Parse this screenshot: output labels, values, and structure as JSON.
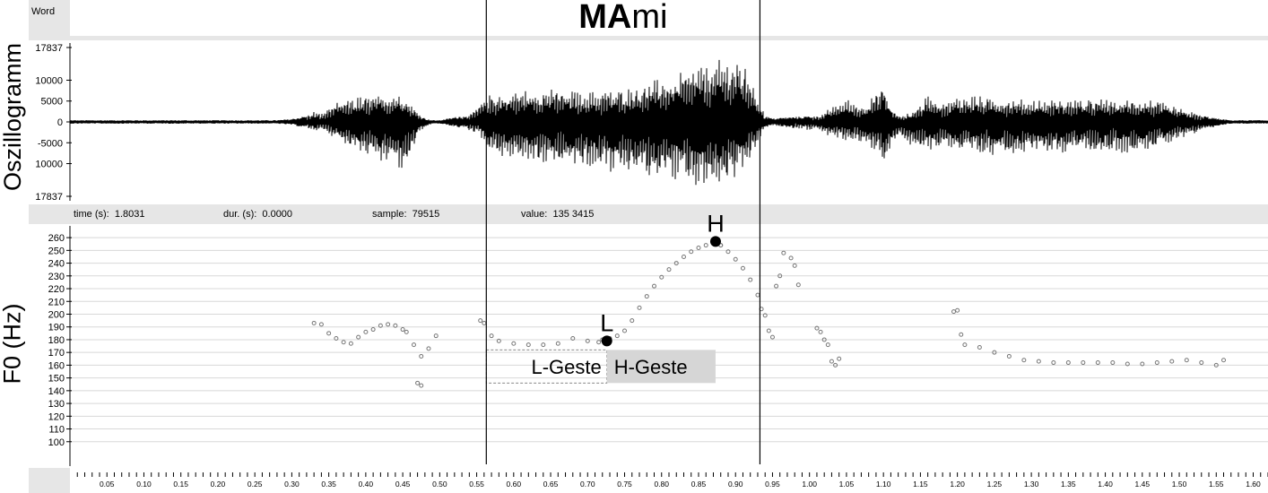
{
  "word_tier": {
    "label": "Word",
    "word_bold": "MA",
    "word_rest": "mi",
    "boundaries": [
      0.563,
      0.933
    ]
  },
  "info_bar": {
    "time": "time (s):  1.8031",
    "dur": "dur. (s):  0.0000",
    "sample": "sample:  79515",
    "value": "value:  135 3415"
  },
  "chart_data": [
    {
      "type": "line",
      "ylabel": "Oszillogramm",
      "xlim": [
        0,
        1.62
      ],
      "ylim": [
        -17837,
        17837
      ],
      "ytick_labels": [
        {
          "v": 17837,
          "t": "17837"
        },
        {
          "v": 10000,
          "t": "10000"
        },
        {
          "v": 5000,
          "t": "5000"
        },
        {
          "v": 0,
          "t": "0"
        },
        {
          "v": -5000,
          "t": "-5000"
        },
        {
          "v": -10000,
          "t": "10000"
        },
        {
          "v": -17837,
          "t": "17837"
        }
      ],
      "envelope": {
        "x": [
          0.0,
          0.28,
          0.3,
          0.32,
          0.33,
          0.34,
          0.35,
          0.36,
          0.37,
          0.39,
          0.41,
          0.43,
          0.45,
          0.46,
          0.47,
          0.48,
          0.49,
          0.5,
          0.53,
          0.545,
          0.555,
          0.56,
          0.565,
          0.58,
          0.6,
          0.62,
          0.64,
          0.66,
          0.68,
          0.7,
          0.72,
          0.74,
          0.76,
          0.78,
          0.8,
          0.82,
          0.84,
          0.86,
          0.88,
          0.9,
          0.92,
          0.93,
          0.94,
          0.95,
          0.96,
          0.98,
          1.0,
          1.02,
          1.025,
          1.035,
          1.05,
          1.07,
          1.085,
          1.095,
          1.1,
          1.105,
          1.115,
          1.125,
          1.14,
          1.16,
          1.18,
          1.185,
          1.2,
          1.22,
          1.25,
          1.28,
          1.3,
          1.33,
          1.36,
          1.4,
          1.43,
          1.46,
          1.48,
          1.5,
          1.52,
          1.54,
          1.555,
          1.57,
          1.62
        ],
        "pos": [
          400,
          400,
          700,
          1500,
          2500,
          2000,
          3500,
          4500,
          5500,
          6000,
          6500,
          7000,
          7500,
          5000,
          2500,
          800,
          400,
          400,
          1500,
          2500,
          4500,
          5500,
          6500,
          7000,
          7500,
          7800,
          8000,
          8000,
          7500,
          7200,
          7500,
          7800,
          8500,
          9500,
          10500,
          11500,
          13000,
          14000,
          15000,
          15500,
          12000,
          6000,
          1500,
          800,
          1000,
          1200,
          1400,
          2000,
          3000,
          4500,
          5500,
          4000,
          6000,
          8500,
          11000,
          6000,
          2500,
          1500,
          2500,
          6500,
          5500,
          4500,
          6500,
          6500,
          6000,
          5500,
          5500,
          5500,
          5500,
          5500,
          5500,
          5500,
          4500,
          3500,
          2200,
          1200,
          700,
          400,
          400
        ],
        "neg": [
          400,
          400,
          700,
          1500,
          2200,
          2000,
          3000,
          4000,
          5500,
          7500,
          9000,
          10500,
          11500,
          9000,
          4000,
          1200,
          400,
          400,
          1500,
          2500,
          3500,
          5000,
          7000,
          8500,
          9000,
          9500,
          10000,
          10500,
          11000,
          11500,
          12000,
          12500,
          13000,
          13500,
          14000,
          14500,
          15500,
          16500,
          15500,
          14000,
          10000,
          5000,
          1500,
          800,
          1000,
          1500,
          2000,
          2500,
          3500,
          4000,
          4500,
          5500,
          6500,
          8000,
          11000,
          8500,
          4500,
          3500,
          6500,
          7000,
          6000,
          5500,
          7500,
          8000,
          8000,
          7500,
          7500,
          7500,
          7500,
          7500,
          7500,
          6500,
          5500,
          4500,
          3000,
          1600,
          800,
          400,
          400
        ]
      }
    },
    {
      "type": "scatter",
      "ylabel": "F0 (Hz)",
      "xlim": [
        0,
        1.62
      ],
      "ylim": [
        90,
        265
      ],
      "yticks": [
        100,
        110,
        120,
        130,
        140,
        150,
        160,
        170,
        180,
        190,
        200,
        210,
        220,
        230,
        240,
        250,
        260
      ],
      "xticks": [
        "0.05",
        "0.10",
        "0.15",
        "0.20",
        "0.25",
        "0.30",
        "0.35",
        "0.40",
        "0.45",
        "0.50",
        "0.55",
        "0.60",
        "0.65",
        "0.70",
        "0.75",
        "0.80",
        "0.85",
        "0.90",
        "0.95",
        "1.00",
        "1.05",
        "1.10",
        "1.15",
        "1.20",
        "1.25",
        "1.30",
        "1.35",
        "1.40",
        "1.45",
        "1.50",
        "1.55",
        "1.60"
      ],
      "contours": [
        {
          "x": [
            0.33,
            0.34,
            0.35,
            0.36,
            0.37,
            0.38,
            0.39,
            0.4,
            0.41,
            0.42,
            0.43,
            0.44,
            0.45,
            0.455
          ],
          "y": [
            193,
            192,
            185,
            181,
            178,
            177,
            182,
            186,
            188,
            191,
            192,
            191,
            188,
            186
          ]
        },
        {
          "x": [
            0.465,
            0.475,
            0.485,
            0.495
          ],
          "y": [
            176,
            167,
            173,
            183
          ]
        },
        {
          "x": [
            0.47,
            0.475
          ],
          "y": [
            146,
            144
          ]
        },
        {
          "x": [
            0.555,
            0.56,
            0.57,
            0.58,
            0.6,
            0.62,
            0.64,
            0.66,
            0.68,
            0.7,
            0.715,
            0.72
          ],
          "y": [
            195,
            193,
            183,
            179,
            177,
            176,
            176,
            177,
            181,
            179,
            178,
            180
          ]
        },
        {
          "x": [
            0.73,
            0.74,
            0.75,
            0.76,
            0.77,
            0.78,
            0.79,
            0.8,
            0.81,
            0.82,
            0.83,
            0.84,
            0.85,
            0.86,
            0.87,
            0.88
          ],
          "y": [
            181,
            183,
            187,
            195,
            205,
            214,
            222,
            229,
            235,
            240,
            245,
            249,
            252,
            254,
            256,
            254
          ]
        },
        {
          "x": [
            0.88,
            0.89,
            0.9,
            0.91,
            0.92,
            0.93,
            0.935
          ],
          "y": [
            254,
            249,
            243,
            236,
            227,
            215,
            204
          ]
        },
        {
          "x": [
            0.94,
            0.945,
            0.95
          ],
          "y": [
            199,
            187,
            182
          ]
        },
        {
          "x": [
            0.955,
            0.965,
            0.975,
            0.985,
            0.96,
            0.98
          ],
          "y": [
            222,
            248,
            244,
            223,
            230,
            238
          ]
        },
        {
          "x": [
            1.01,
            1.015,
            1.02,
            1.025,
            1.03,
            1.035,
            1.04
          ],
          "y": [
            189,
            186,
            180,
            176,
            163,
            160,
            165
          ]
        },
        {
          "x": [
            1.195,
            1.2,
            1.205
          ],
          "y": [
            202,
            203,
            184
          ]
        },
        {
          "x": [
            1.21,
            1.23,
            1.25,
            1.27,
            1.29,
            1.31,
            1.33,
            1.35,
            1.37,
            1.39,
            1.41,
            1.43,
            1.45,
            1.47,
            1.49,
            1.51,
            1.53,
            1.55,
            1.56
          ],
          "y": [
            176,
            174,
            170,
            167,
            164,
            163,
            162,
            162,
            162,
            162,
            162,
            161,
            161,
            162,
            163,
            164,
            162,
            160,
            164
          ]
        }
      ],
      "targets": [
        {
          "label": "L",
          "x": 0.726,
          "y": 179
        },
        {
          "label": "H",
          "x": 0.873,
          "y": 257
        }
      ],
      "gestures": [
        {
          "label": "L-Geste",
          "x0": 0.563,
          "x1": 0.726,
          "y0": 172,
          "y1": 146
        },
        {
          "label": "H-Geste",
          "x0": 0.726,
          "x1": 0.873,
          "y0": 172,
          "y1": 146
        }
      ]
    }
  ]
}
